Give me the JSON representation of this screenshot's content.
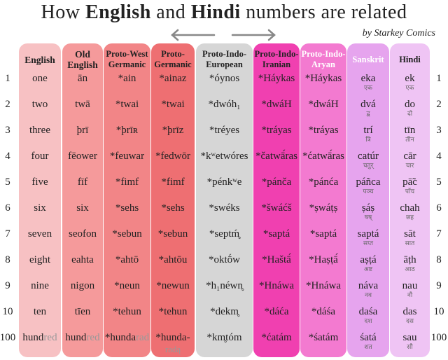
{
  "title": {
    "part1": "How ",
    "bold1": "English",
    "part2": " and ",
    "bold2": "Hindi",
    "part3": " numbers are related"
  },
  "credit": "by Starkey Comics",
  "colors": {
    "english": "#f7c1c3",
    "old_english": "#f59a9b",
    "proto_west_germanic": "#f28587",
    "proto_germanic": "#ee6f72",
    "pie": "#d6d6d6",
    "indo_iranian": "#f040b0",
    "aryan": "#f37ad0",
    "sanskrit": "#e6a4ee",
    "hindi": "#efc4f4"
  },
  "headers": [
    "English",
    "Old English",
    "Proto-West Germanic",
    "Proto-Germanic",
    "Proto-Indo-European",
    "Proto-Indo-Iranian",
    "Proto-Indo-Aryan",
    "Sanskrit",
    "Hindi"
  ],
  "header_lines": [
    [
      "English"
    ],
    [
      "Old",
      "English"
    ],
    [
      "Proto-West",
      "Germanic"
    ],
    [
      "Proto-",
      "Germanic"
    ],
    [
      "Proto-Indo-",
      "European"
    ],
    [
      "Proto-Indo-",
      "Iranian"
    ],
    [
      "Proto-Indo-",
      "Aryan"
    ],
    [
      "Sanskrit"
    ],
    [
      "Hindi"
    ]
  ],
  "row_numbers": [
    "1",
    "2",
    "3",
    "4",
    "5",
    "6",
    "7",
    "8",
    "9",
    "10",
    "100"
  ],
  "rows": [
    [
      "one",
      "ān",
      "*ain",
      "*ainaz",
      "*óynos",
      "*Háykas",
      "*Háykas",
      "eka",
      "ek"
    ],
    [
      "two",
      "twā",
      "*twai",
      "*twai",
      "*dwóh₁",
      "*dwáH",
      "*dwáH",
      "dvá",
      "do"
    ],
    [
      "three",
      "þrī",
      "*þrīʀ",
      "*þrīz",
      "*tréyes",
      "*tráyas",
      "*tráyas",
      "trí",
      "tīn"
    ],
    [
      "four",
      "fēower",
      "*feuwar",
      "*fedwōr",
      "*kʷetwóres",
      "*čatwā́ras",
      "*ćatwā́ras",
      "catúr",
      "cār"
    ],
    [
      "five",
      "fīf",
      "*fimf",
      "*fimf",
      "*pénkʷe",
      "*pánča",
      "*pánća",
      "páñca",
      "pā̃c"
    ],
    [
      "six",
      "six",
      "*sehs",
      "*sehs",
      "*swéks",
      "*šwáćš",
      "*ṣwáṭṣ",
      "ṣáṣ",
      "chah"
    ],
    [
      "seven",
      "seofon",
      "*sebun",
      "*sebun",
      "*septḿ̥",
      "*saptá",
      "*saptá",
      "saptá",
      "sāt"
    ],
    [
      "eight",
      "eahta",
      "*ahtō",
      "*ahtōu",
      "*oktṓw",
      "*Haštā́",
      "*Haṣṭā́",
      "aṣṭá",
      "āṭh"
    ],
    [
      "nine",
      "nigon",
      "*neun",
      "*newun",
      "*h₁néwn̥",
      "*Hnáwa",
      "*Hnáwa",
      "náva",
      "nau"
    ],
    [
      "ten",
      "tīen",
      "*tehun",
      "*tehun",
      "*dekm̥",
      "*dáća",
      "*dáśa",
      "daśa",
      "das"
    ],
    [
      "hund|red",
      "hund|red",
      "*hunda|rad",
      "*hunda-|radą",
      "*km̥tóm",
      "*ćatám",
      "*śatám",
      "śatá",
      "sau"
    ]
  ],
  "sanskrit_devanagari": [
    "एक",
    "द्व",
    "त्रि",
    "चतुर्",
    "पञ्च",
    "षष्",
    "सप्त",
    "अष्ट",
    "नव",
    "दश",
    "शत"
  ],
  "hindi_devanagari": [
    "एक",
    "दो",
    "तीन",
    "चार",
    "पाँच",
    "छह",
    "सात",
    "आठ",
    "नौ",
    "दस",
    "सौ"
  ]
}
